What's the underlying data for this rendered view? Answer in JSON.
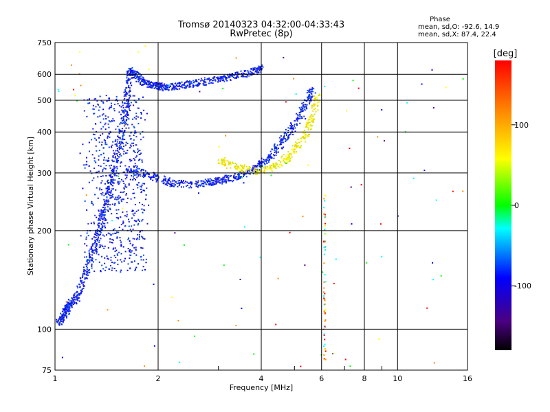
{
  "chart_data": {
    "type": "scatter",
    "title": "Tromsø 20140323 04:32:00-04:33:43",
    "subtitle": "RwPretec (8p)",
    "xlabel": "Frequency [MHz]",
    "ylabel": "Stationary phase Virtual Height [km]",
    "x_scale": "log",
    "y_scale": "log",
    "xlim": [
      1,
      16
    ],
    "ylim": [
      75,
      750
    ],
    "x_ticks": [
      1,
      2,
      4,
      6,
      8,
      10,
      16
    ],
    "x_tick_labels": [
      "1",
      "2",
      "4",
      "6",
      "8",
      "10",
      "16"
    ],
    "y_ticks": [
      75,
      100,
      200,
      300,
      400,
      500,
      600,
      750
    ],
    "y_tick_labels": [
      "75",
      "100",
      "200",
      "300",
      "400",
      "500",
      "600",
      "750"
    ],
    "grid": true,
    "legend_title": "Phase",
    "legend_lines": [
      "mean, sd,O: -92.6, 14.9",
      "mean, sd,X: 87.4, 22.4"
    ],
    "colorbar": {
      "label": "[deg]",
      "range": [
        -180,
        180
      ],
      "ticks": [
        100,
        0,
        -100
      ],
      "tick_labels": [
        "100",
        "0",
        "-100"
      ],
      "colors": [
        "#000000",
        "#4b0082",
        "#0000ff",
        "#00ffff",
        "#00ff00",
        "#ffff00",
        "#ff7f00",
        "#ff0000"
      ]
    },
    "traces": [
      {
        "mode": "O",
        "phase": -100,
        "description_shown": false,
        "points": [
          [
            1.02,
            105
          ],
          [
            1.05,
            110
          ],
          [
            1.08,
            115
          ],
          [
            1.1,
            120
          ],
          [
            1.15,
            125
          ],
          [
            1.2,
            140
          ],
          [
            1.25,
            160
          ],
          [
            1.3,
            180
          ],
          [
            1.35,
            210
          ],
          [
            1.4,
            240
          ],
          [
            1.45,
            280
          ],
          [
            1.5,
            330
          ],
          [
            1.55,
            390
          ],
          [
            1.6,
            460
          ],
          [
            1.62,
            540
          ],
          [
            1.65,
            620
          ],
          [
            1.7,
            600
          ],
          [
            1.8,
            570
          ],
          [
            1.9,
            560
          ],
          [
            2.0,
            555
          ],
          [
            2.1,
            550
          ],
          [
            2.3,
            555
          ],
          [
            2.5,
            565
          ],
          [
            2.8,
            575
          ],
          [
            3.1,
            585
          ],
          [
            3.4,
            600
          ],
          [
            3.8,
            615
          ],
          [
            4.0,
            630
          ]
        ]
      },
      {
        "mode": "O",
        "phase": -100,
        "points": [
          [
            1.6,
            310
          ],
          [
            1.8,
            300
          ],
          [
            2.0,
            290
          ],
          [
            2.2,
            280
          ],
          [
            2.5,
            278
          ],
          [
            2.8,
            282
          ],
          [
            3.0,
            285
          ],
          [
            3.3,
            292
          ],
          [
            3.6,
            300
          ],
          [
            3.9,
            315
          ],
          [
            4.2,
            335
          ],
          [
            4.5,
            365
          ],
          [
            4.8,
            400
          ],
          [
            5.1,
            440
          ],
          [
            5.4,
            500
          ],
          [
            5.6,
            540
          ]
        ]
      },
      {
        "mode": "X",
        "phase": 100,
        "points": [
          [
            3.0,
            330
          ],
          [
            3.2,
            320
          ],
          [
            3.5,
            312
          ],
          [
            3.8,
            305
          ],
          [
            4.1,
            308
          ],
          [
            4.4,
            318
          ],
          [
            4.7,
            332
          ],
          [
            5.0,
            355
          ],
          [
            5.3,
            385
          ],
          [
            5.5,
            420
          ],
          [
            5.7,
            470
          ],
          [
            5.8,
            520
          ]
        ]
      }
    ]
  }
}
